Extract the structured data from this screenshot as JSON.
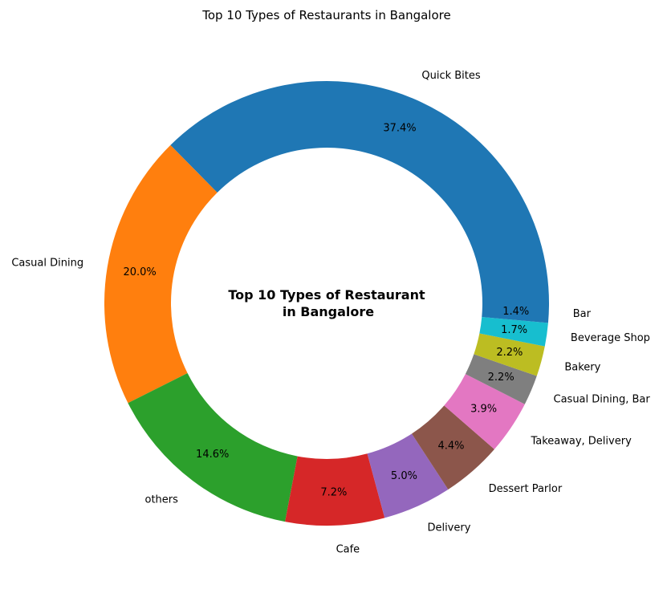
{
  "chart_data": {
    "type": "pie",
    "variant": "donut",
    "title": "Top 10 Types of Restaurants in Bangalore",
    "center_text": [
      "Top 10 Types of Restaurant",
      "in Bangalore"
    ],
    "categories": [
      "Quick Bites",
      "Casual Dining",
      "others",
      "Cafe",
      "Delivery",
      "Dessert Parlor",
      "Takeaway, Delivery",
      "Casual Dining, Bar",
      "Bakery",
      "Beverage Shop",
      "Bar"
    ],
    "values": [
      37.4,
      20.0,
      14.6,
      7.2,
      5.0,
      4.4,
      3.9,
      2.2,
      2.2,
      1.7,
      1.4
    ],
    "value_labels": [
      "37.4%",
      "20.0%",
      "14.6%",
      "7.2%",
      "5.0%",
      "4.4%",
      "3.9%",
      "2.2%",
      "2.2%",
      "1.7%",
      "1.4%"
    ],
    "colors": [
      "#1f77b4",
      "#ff7f0e",
      "#2ca02c",
      "#d62728",
      "#9467bd",
      "#8c564b",
      "#e377c2",
      "#7f7f7f",
      "#bcbd22",
      "#17becf",
      "#1f77b4"
    ],
    "start_angle_deg": 0,
    "direction": "counterclockwise",
    "legend": "none"
  }
}
